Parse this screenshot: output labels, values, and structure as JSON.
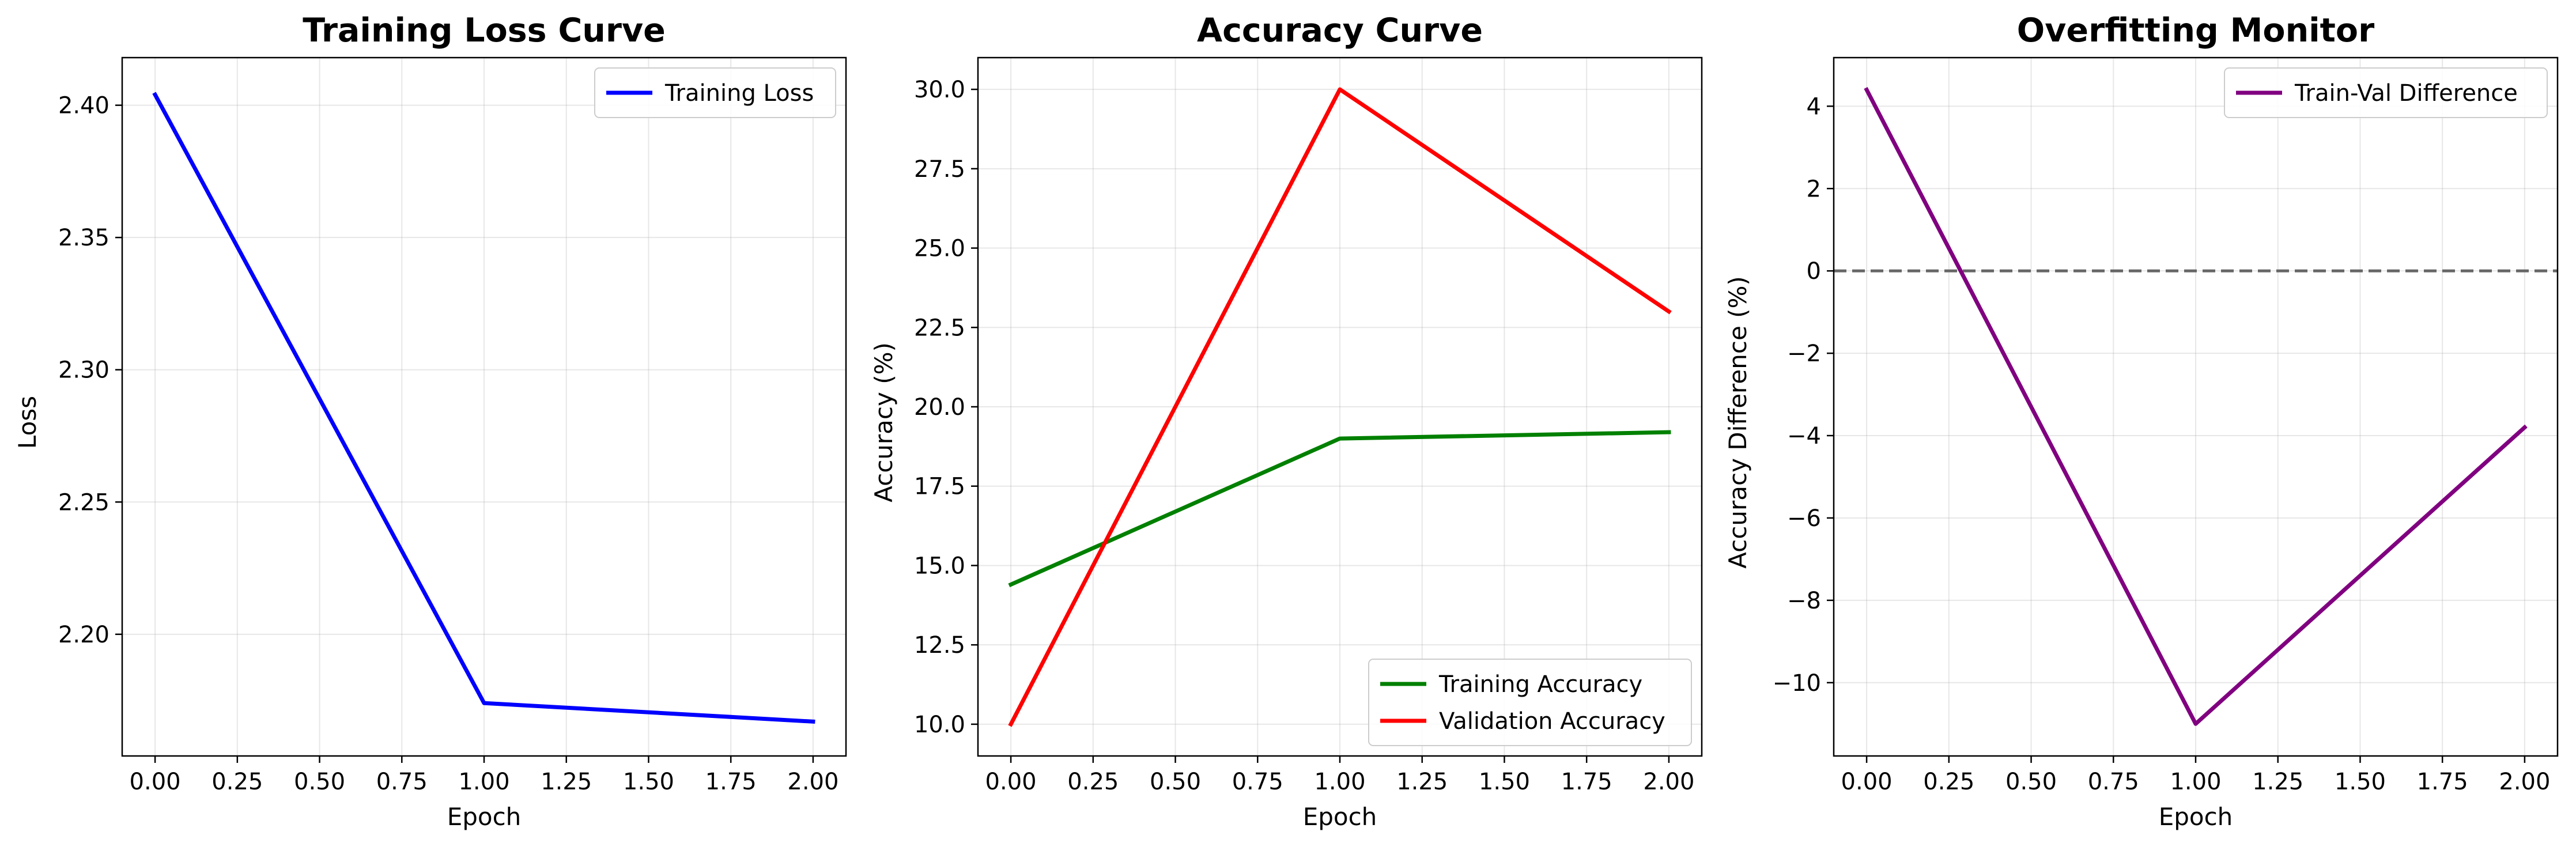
{
  "chart_data": [
    {
      "type": "line",
      "title": "Training Loss Curve",
      "xlabel": "Epoch",
      "ylabel": "Loss",
      "xlim": [
        -0.1,
        2.1
      ],
      "ylim": [
        2.154,
        2.418
      ],
      "xticks": [
        0.0,
        0.25,
        0.5,
        0.75,
        1.0,
        1.25,
        1.5,
        1.75,
        2.0
      ],
      "xtick_labels": [
        "0.00",
        "0.25",
        "0.50",
        "0.75",
        "1.00",
        "1.25",
        "1.50",
        "1.75",
        "2.00"
      ],
      "yticks": [
        2.2,
        2.25,
        2.3,
        2.35,
        2.4
      ],
      "ytick_labels": [
        "2.20",
        "2.25",
        "2.30",
        "2.35",
        "2.40"
      ],
      "grid": true,
      "legend_position": "top-right",
      "x": [
        0,
        1,
        2
      ],
      "series": [
        {
          "name": "Training Loss",
          "values": [
            2.404,
            2.174,
            2.167
          ],
          "color": "#0000ff"
        }
      ]
    },
    {
      "type": "line",
      "title": "Accuracy Curve",
      "xlabel": "Epoch",
      "ylabel": "Accuracy (%)",
      "xlim": [
        -0.1,
        2.1
      ],
      "ylim": [
        9.0,
        31.0
      ],
      "xticks": [
        0.0,
        0.25,
        0.5,
        0.75,
        1.0,
        1.25,
        1.5,
        1.75,
        2.0
      ],
      "xtick_labels": [
        "0.00",
        "0.25",
        "0.50",
        "0.75",
        "1.00",
        "1.25",
        "1.50",
        "1.75",
        "2.00"
      ],
      "yticks": [
        10.0,
        12.5,
        15.0,
        17.5,
        20.0,
        22.5,
        25.0,
        27.5,
        30.0
      ],
      "ytick_labels": [
        "10.0",
        "12.5",
        "15.0",
        "17.5",
        "20.0",
        "22.5",
        "25.0",
        "27.5",
        "30.0"
      ],
      "grid": true,
      "legend_position": "bottom-right",
      "x": [
        0,
        1,
        2
      ],
      "series": [
        {
          "name": "Training Accuracy",
          "values": [
            14.4,
            19.0,
            19.2
          ],
          "color": "#008000"
        },
        {
          "name": "Validation Accuracy",
          "values": [
            10.0,
            30.0,
            23.0
          ],
          "color": "#ff0000"
        }
      ]
    },
    {
      "type": "line",
      "title": "Overfitting Monitor",
      "xlabel": "Epoch",
      "ylabel": "Accuracy Difference (%)",
      "xlim": [
        -0.1,
        2.1
      ],
      "ylim": [
        -11.78,
        5.18
      ],
      "xticks": [
        0.0,
        0.25,
        0.5,
        0.75,
        1.0,
        1.25,
        1.5,
        1.75,
        2.0
      ],
      "xtick_labels": [
        "0.00",
        "0.25",
        "0.50",
        "0.75",
        "1.00",
        "1.25",
        "1.50",
        "1.75",
        "2.00"
      ],
      "yticks": [
        -10,
        -8,
        -6,
        -4,
        -2,
        0,
        2,
        4
      ],
      "ytick_labels": [
        "−10",
        "−8",
        "−6",
        "−4",
        "−2",
        "0",
        "2",
        "4"
      ],
      "grid": true,
      "legend_position": "top-right",
      "reference_line": {
        "y": 0,
        "style": "dashed",
        "color": "#666666"
      },
      "x": [
        0,
        1,
        2
      ],
      "series": [
        {
          "name": "Train-Val Difference",
          "values": [
            4.4,
            -11.0,
            -3.8
          ],
          "color": "#800080"
        }
      ]
    }
  ]
}
